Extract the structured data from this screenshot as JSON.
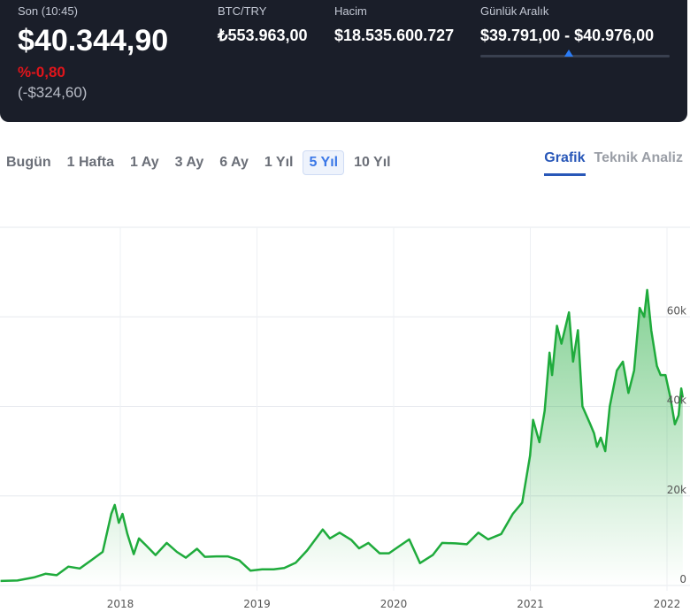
{
  "header": {
    "last_label": "Son (10:45)",
    "last_price": "$40.344,90",
    "change_pct": "%-0,80",
    "change_abs": "(-$324,60)",
    "pair_label": "BTC/TRY",
    "pair_value": "₺553.963,00",
    "volume_label": "Hacim",
    "volume_value": "$18.535.600.727",
    "range_label": "Günlük Aralık",
    "range_value": "$39.791,00 - $40.976,00",
    "range_position": 0.467
  },
  "periods": [
    "Bugün",
    "1 Hafta",
    "1 Ay",
    "3 Ay",
    "6 Ay",
    "1 Yıl",
    "5 Yıl",
    "10 Yıl"
  ],
  "active_period": "5 Yıl",
  "views": [
    "Grafik",
    "Teknik Analiz"
  ],
  "active_view": "Grafik",
  "colors": {
    "line": "#1fab3c",
    "accent": "#3b78e7",
    "negative": "#e0151b"
  },
  "chart_data": {
    "type": "area",
    "x_ticks": [
      "2018",
      "2019",
      "2020",
      "2021",
      "2022"
    ],
    "y_ticks": [
      "0",
      "20k",
      "40k",
      "60k"
    ],
    "ylim": [
      0,
      80000
    ],
    "grid": true,
    "series": [
      {
        "points": [
          [
            "2017-02-15",
            1000
          ],
          [
            "2017-04-01",
            1100
          ],
          [
            "2017-05-15",
            1800
          ],
          [
            "2017-06-15",
            2600
          ],
          [
            "2017-07-15",
            2300
          ],
          [
            "2017-08-15",
            4200
          ],
          [
            "2017-09-15",
            3800
          ],
          [
            "2017-10-15",
            5600
          ],
          [
            "2017-11-15",
            7500
          ],
          [
            "2017-12-08",
            16000
          ],
          [
            "2017-12-17",
            18000
          ],
          [
            "2017-12-28",
            14000
          ],
          [
            "2018-01-07",
            16000
          ],
          [
            "2018-01-20",
            11500
          ],
          [
            "2018-02-06",
            7000
          ],
          [
            "2018-02-20",
            10500
          ],
          [
            "2018-03-10",
            9000
          ],
          [
            "2018-04-05",
            6800
          ],
          [
            "2018-05-05",
            9500
          ],
          [
            "2018-06-01",
            7500
          ],
          [
            "2018-06-25",
            6200
          ],
          [
            "2018-07-25",
            8200
          ],
          [
            "2018-08-15",
            6400
          ],
          [
            "2018-09-15",
            6500
          ],
          [
            "2018-10-15",
            6500
          ],
          [
            "2018-11-15",
            5600
          ],
          [
            "2018-12-15",
            3300
          ],
          [
            "2019-01-15",
            3600
          ],
          [
            "2019-02-15",
            3600
          ],
          [
            "2019-03-15",
            3900
          ],
          [
            "2019-04-15",
            5100
          ],
          [
            "2019-05-15",
            7800
          ],
          [
            "2019-06-26",
            12500
          ],
          [
            "2019-07-15",
            10500
          ],
          [
            "2019-08-10",
            11800
          ],
          [
            "2019-09-10",
            10200
          ],
          [
            "2019-10-01",
            8300
          ],
          [
            "2019-10-26",
            9500
          ],
          [
            "2019-11-25",
            7200
          ],
          [
            "2019-12-20",
            7200
          ],
          [
            "2020-01-15",
            8700
          ],
          [
            "2020-02-12",
            10300
          ],
          [
            "2020-03-12",
            5000
          ],
          [
            "2020-04-15",
            6800
          ],
          [
            "2020-05-10",
            9500
          ],
          [
            "2020-06-15",
            9400
          ],
          [
            "2020-07-15",
            9200
          ],
          [
            "2020-08-15",
            11800
          ],
          [
            "2020-09-10",
            10300
          ],
          [
            "2020-10-15",
            11500
          ],
          [
            "2020-11-15",
            16000
          ],
          [
            "2020-12-10",
            18500
          ],
          [
            "2020-12-31",
            29000
          ],
          [
            "2021-01-08",
            37000
          ],
          [
            "2021-01-25",
            32000
          ],
          [
            "2021-02-08",
            39000
          ],
          [
            "2021-02-21",
            52000
          ],
          [
            "2021-02-28",
            47000
          ],
          [
            "2021-03-13",
            58000
          ],
          [
            "2021-03-25",
            54000
          ],
          [
            "2021-04-14",
            61000
          ],
          [
            "2021-04-25",
            50000
          ],
          [
            "2021-05-08",
            57000
          ],
          [
            "2021-05-20",
            40000
          ],
          [
            "2021-06-10",
            36000
          ],
          [
            "2021-06-20",
            34000
          ],
          [
            "2021-06-28",
            31000
          ],
          [
            "2021-07-08",
            33000
          ],
          [
            "2021-07-20",
            30000
          ],
          [
            "2021-08-01",
            40000
          ],
          [
            "2021-08-20",
            48000
          ],
          [
            "2021-09-05",
            50000
          ],
          [
            "2021-09-20",
            43000
          ],
          [
            "2021-10-05",
            48000
          ],
          [
            "2021-10-20",
            62000
          ],
          [
            "2021-11-01",
            60000
          ],
          [
            "2021-11-09",
            66000
          ],
          [
            "2021-11-20",
            57000
          ],
          [
            "2021-12-05",
            49000
          ],
          [
            "2021-12-15",
            47000
          ],
          [
            "2021-12-28",
            47000
          ],
          [
            "2022-01-10",
            42000
          ],
          [
            "2022-01-22",
            36000
          ],
          [
            "2022-02-01",
            38000
          ],
          [
            "2022-02-08",
            44000
          ],
          [
            "2022-02-12",
            42000
          ]
        ]
      }
    ]
  }
}
